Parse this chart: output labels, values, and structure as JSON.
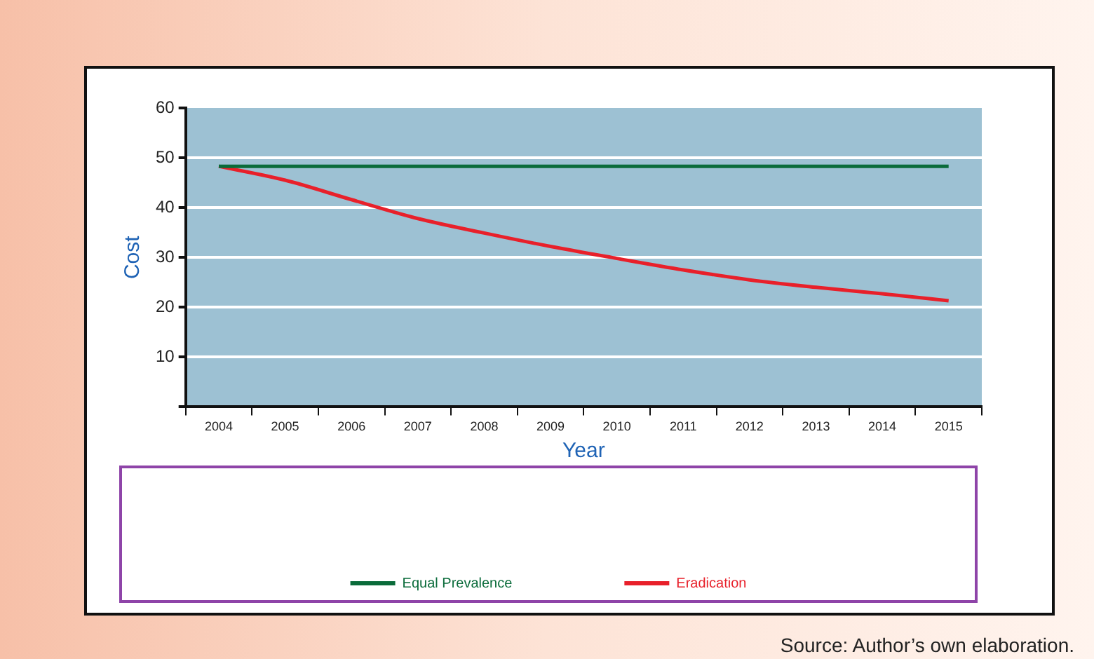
{
  "chart_data": {
    "type": "line",
    "xlabel": "Year",
    "ylabel": "Cost",
    "categories": [
      "2004",
      "2005",
      "2006",
      "2007",
      "2008",
      "2009",
      "2010",
      "2011",
      "2012",
      "2013",
      "2014",
      "2015"
    ],
    "series": [
      {
        "name": "Equal Prevalence",
        "color": "#0a6b3a",
        "values": [
          48.3,
          48.3,
          48.3,
          48.3,
          48.3,
          48.3,
          48.3,
          48.3,
          48.3,
          48.3,
          48.3,
          48.3
        ]
      },
      {
        "name": "Eradication",
        "color": "#e8202a",
        "values": [
          48.3,
          45.5,
          41.6,
          37.8,
          34.9,
          32.2,
          29.8,
          27.5,
          25.5,
          24.0,
          22.7,
          21.3
        ]
      }
    ],
    "ylim": [
      0,
      60
    ],
    "yticks": [
      {
        "value": 0,
        "label": null
      },
      10,
      20,
      30,
      40,
      50,
      60
    ],
    "grid": "y",
    "legend": "bottom",
    "marker": "none",
    "line_style": "solid",
    "annotations": [
      "Source: Author’s own elaboration."
    ]
  }
}
